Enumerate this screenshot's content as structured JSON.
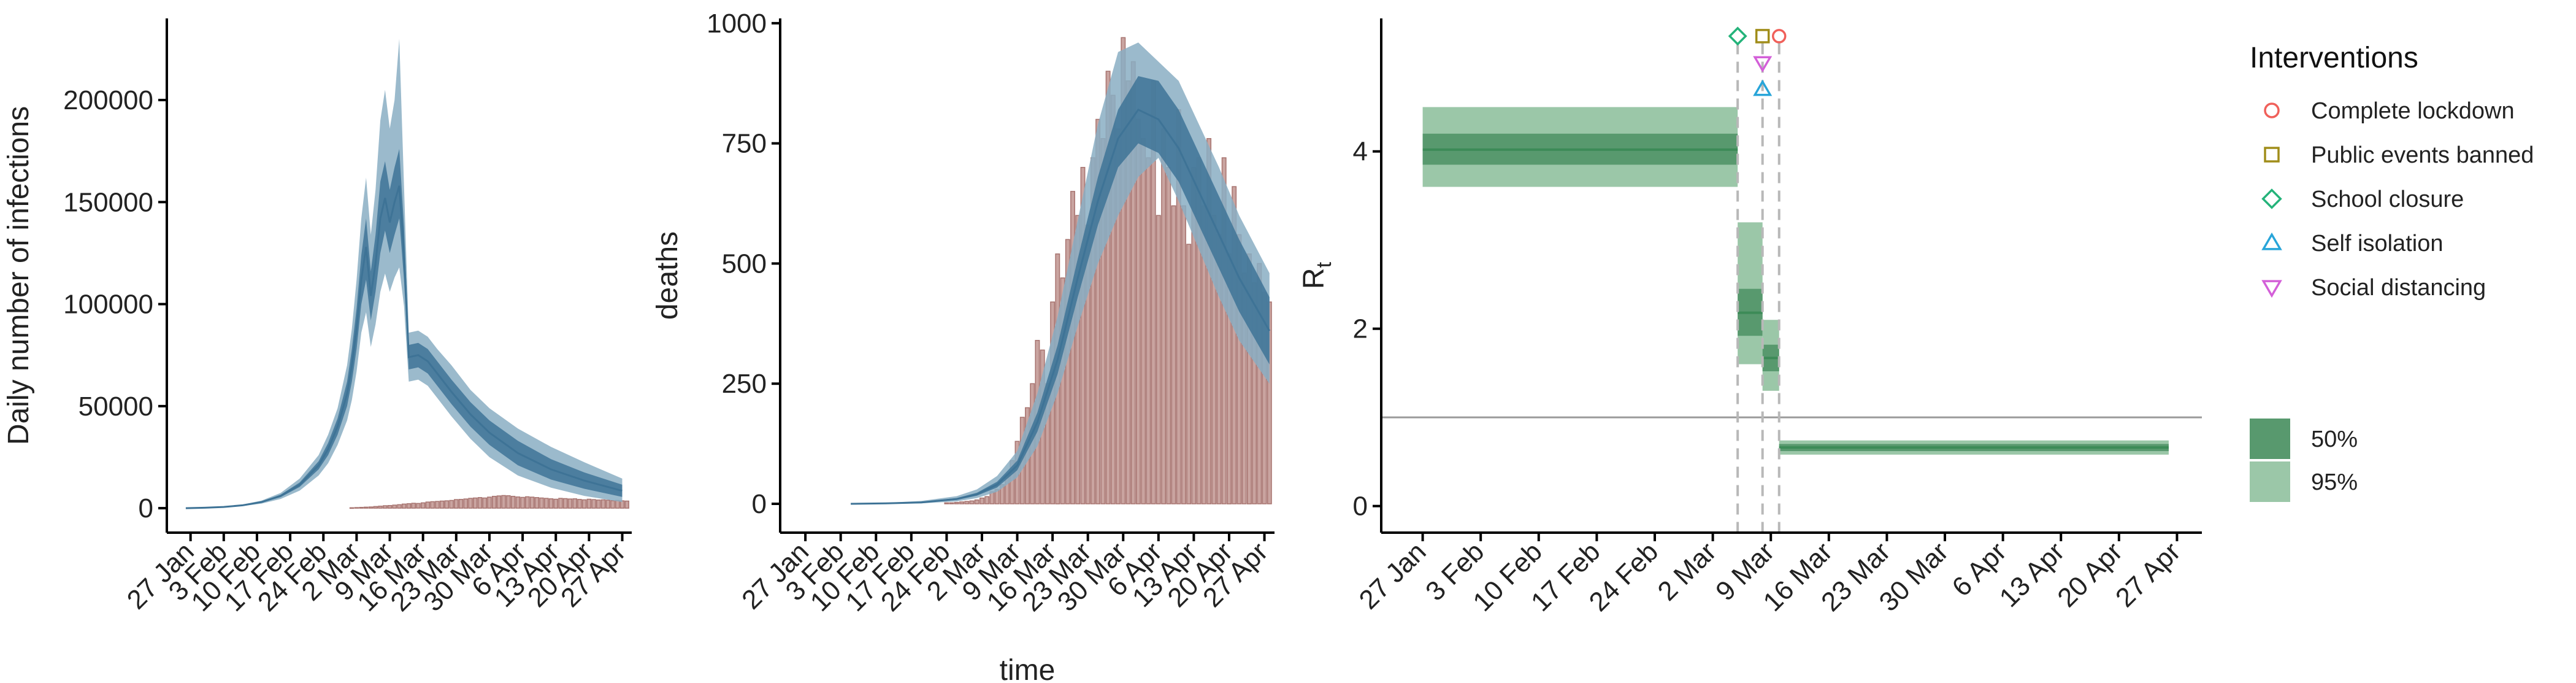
{
  "chart_data": [
    {
      "type": "area",
      "id": "infections",
      "xlabel": "",
      "ylabel": "Daily number of infections",
      "ylim": [
        -12000,
        240000
      ],
      "yticks": [
        "0",
        "50000",
        "100000",
        "150000",
        "200000"
      ],
      "ytick_values": [
        0,
        50000,
        100000,
        150000,
        200000
      ],
      "x_start": "2020-01-22",
      "x_end": "2020-04-29",
      "xticks": [
        "27 Jan",
        "3 Feb",
        "10 Feb",
        "17 Feb",
        "24 Feb",
        "2 Mar",
        "9 Mar",
        "16 Mar",
        "23 Mar",
        "30 Mar",
        "6 Apr",
        "13 Apr",
        "20 Apr",
        "27 Apr"
      ],
      "xtick_dates": [
        "2020-01-27",
        "2020-02-03",
        "2020-02-10",
        "2020-02-17",
        "2020-02-24",
        "2020-03-02",
        "2020-03-09",
        "2020-03-16",
        "2020-03-23",
        "2020-03-30",
        "2020-04-06",
        "2020-04-13",
        "2020-04-20",
        "2020-04-27"
      ],
      "series": [
        {
          "dates": [
            "2020-01-26",
            "2020-01-30",
            "2020-02-03",
            "2020-02-07",
            "2020-02-11",
            "2020-02-15",
            "2020-02-19",
            "2020-02-23",
            "2020-02-25",
            "2020-02-27",
            "2020-02-29",
            "2020-03-01",
            "2020-03-02",
            "2020-03-03",
            "2020-03-04",
            "2020-03-05",
            "2020-03-06",
            "2020-03-07",
            "2020-03-08",
            "2020-03-09",
            "2020-03-10",
            "2020-03-11",
            "2020-03-12",
            "2020-03-13",
            "2020-03-15",
            "2020-03-17",
            "2020-03-19",
            "2020-03-22",
            "2020-03-26",
            "2020-03-30",
            "2020-04-05",
            "2020-04-12",
            "2020-04-19",
            "2020-04-27"
          ],
          "median": [
            0,
            200,
            600,
            1400,
            3000,
            6000,
            11500,
            21000,
            29000,
            40000,
            56000,
            70000,
            88000,
            112000,
            128000,
            104000,
            120000,
            142000,
            152000,
            140000,
            150000,
            158000,
            125000,
            74000,
            75000,
            72000,
            66000,
            57000,
            46000,
            37000,
            27000,
            19000,
            13500,
            8500
          ],
          "p50_low": [
            0,
            180,
            540,
            1260,
            2700,
            5400,
            10400,
            19000,
            26000,
            36000,
            50000,
            62000,
            78000,
            100000,
            112000,
            92000,
            106000,
            125000,
            136000,
            125000,
            134000,
            142000,
            112000,
            68000,
            69000,
            66000,
            60000,
            51000,
            40000,
            31000,
            21000,
            14000,
            9500,
            5500
          ],
          "p50_high": [
            0,
            220,
            660,
            1540,
            3300,
            6600,
            12600,
            23000,
            32000,
            44000,
            62000,
            78000,
            98000,
            124000,
            142000,
            116000,
            134000,
            160000,
            170000,
            156000,
            167000,
            176000,
            138000,
            80000,
            81000,
            78000,
            72000,
            63000,
            52000,
            43000,
            33000,
            24000,
            17500,
            11500
          ],
          "p95_low": [
            0,
            150,
            450,
            1050,
            2250,
            4500,
            8600,
            16000,
            22000,
            31000,
            43000,
            53000,
            67000,
            86000,
            96000,
            79000,
            90000,
            106000,
            115000,
            106000,
            113000,
            118000,
            99000,
            62000,
            63000,
            60000,
            54000,
            45000,
            34000,
            25000,
            16000,
            10000,
            6000,
            3000
          ],
          "p95_high": [
            0,
            250,
            750,
            1750,
            3750,
            7500,
            14500,
            26000,
            36000,
            49000,
            70000,
            88000,
            112000,
            142000,
            162000,
            134000,
            156000,
            190000,
            205000,
            186000,
            200000,
            230000,
            158000,
            86000,
            87000,
            84000,
            78000,
            70000,
            58000,
            49000,
            39000,
            30000,
            22500,
            14500
          ]
        }
      ],
      "bars": {
        "dates": [
          "2020-03-01",
          "2020-03-02",
          "2020-03-03",
          "2020-03-04",
          "2020-03-05",
          "2020-03-06",
          "2020-03-07",
          "2020-03-08",
          "2020-03-09",
          "2020-03-10",
          "2020-03-11",
          "2020-03-12",
          "2020-03-13",
          "2020-03-14",
          "2020-03-15",
          "2020-03-16",
          "2020-03-17",
          "2020-03-18",
          "2020-03-19",
          "2020-03-20",
          "2020-03-21",
          "2020-03-22",
          "2020-03-23",
          "2020-03-24",
          "2020-03-25",
          "2020-03-26",
          "2020-03-27",
          "2020-03-28",
          "2020-03-29",
          "2020-03-30",
          "2020-03-31",
          "2020-04-01",
          "2020-04-02",
          "2020-04-03",
          "2020-04-04",
          "2020-04-05",
          "2020-04-06",
          "2020-04-07",
          "2020-04-08",
          "2020-04-09",
          "2020-04-10",
          "2020-04-11",
          "2020-04-12",
          "2020-04-13",
          "2020-04-14",
          "2020-04-15",
          "2020-04-16",
          "2020-04-17",
          "2020-04-18",
          "2020-04-19",
          "2020-04-20",
          "2020-04-21",
          "2020-04-22",
          "2020-04-23",
          "2020-04-24",
          "2020-04-25",
          "2020-04-26",
          "2020-04-27",
          "2020-04-28"
        ],
        "values": [
          200,
          300,
          400,
          500,
          600,
          800,
          1000,
          1200,
          1300,
          1500,
          1700,
          2000,
          2200,
          2400,
          2300,
          2600,
          3000,
          3200,
          3300,
          3500,
          3600,
          3800,
          4200,
          4300,
          4500,
          4800,
          5000,
          5200,
          5000,
          5400,
          5800,
          6000,
          6200,
          6100,
          5800,
          5500,
          5300,
          5600,
          5400,
          5200,
          5000,
          4800,
          4600,
          4400,
          4800,
          4700,
          4500,
          4600,
          4300,
          4100,
          4400,
          4200,
          4000,
          4100,
          3900,
          3700,
          3800,
          3600,
          3500
        ]
      }
    },
    {
      "type": "area",
      "id": "deaths",
      "xlabel": "time",
      "ylabel": "deaths",
      "ylim": [
        -60,
        1010
      ],
      "yticks": [
        "0",
        "250",
        "500",
        "750",
        "1000"
      ],
      "ytick_values": [
        0,
        250,
        500,
        750,
        1000
      ],
      "x_start": "2020-01-22",
      "x_end": "2020-04-29",
      "xticks": [
        "27 Jan",
        "3 Feb",
        "10 Feb",
        "17 Feb",
        "24 Feb",
        "2 Mar",
        "9 Mar",
        "16 Mar",
        "23 Mar",
        "30 Mar",
        "6 Apr",
        "13 Apr",
        "20 Apr",
        "27 Apr"
      ],
      "xtick_dates": [
        "2020-01-27",
        "2020-02-03",
        "2020-02-10",
        "2020-02-17",
        "2020-02-24",
        "2020-03-02",
        "2020-03-09",
        "2020-03-16",
        "2020-03-23",
        "2020-03-30",
        "2020-04-06",
        "2020-04-13",
        "2020-04-20",
        "2020-04-27"
      ],
      "series": [
        {
          "dates": [
            "2020-02-05",
            "2020-02-12",
            "2020-02-19",
            "2020-02-26",
            "2020-03-01",
            "2020-03-05",
            "2020-03-09",
            "2020-03-13",
            "2020-03-17",
            "2020-03-21",
            "2020-03-25",
            "2020-03-29",
            "2020-04-02",
            "2020-04-06",
            "2020-04-10",
            "2020-04-14",
            "2020-04-18",
            "2020-04-22",
            "2020-04-28"
          ],
          "median": [
            0,
            1,
            3,
            10,
            20,
            40,
            80,
            170,
            300,
            470,
            630,
            760,
            820,
            800,
            740,
            650,
            560,
            470,
            360
          ],
          "p50_low": [
            0,
            1,
            2,
            8,
            17,
            34,
            70,
            150,
            270,
            430,
            580,
            700,
            750,
            730,
            670,
            580,
            490,
            400,
            290
          ],
          "p50_high": [
            0,
            1,
            4,
            12,
            23,
            46,
            90,
            190,
            330,
            510,
            680,
            820,
            890,
            880,
            820,
            730,
            640,
            550,
            430
          ],
          "p95_low": [
            0,
            0,
            1,
            5,
            12,
            25,
            55,
            120,
            230,
            370,
            500,
            600,
            680,
            720,
            630,
            530,
            430,
            340,
            250
          ],
          "p95_high": [
            0,
            2,
            6,
            16,
            30,
            58,
            110,
            230,
            390,
            590,
            790,
            940,
            960,
            920,
            880,
            790,
            700,
            600,
            480
          ]
        }
      ],
      "bars": {
        "dates": [
          "2020-02-24",
          "2020-02-25",
          "2020-02-26",
          "2020-02-27",
          "2020-02-28",
          "2020-02-29",
          "2020-03-01",
          "2020-03-02",
          "2020-03-03",
          "2020-03-04",
          "2020-03-05",
          "2020-03-06",
          "2020-03-07",
          "2020-03-08",
          "2020-03-09",
          "2020-03-10",
          "2020-03-11",
          "2020-03-12",
          "2020-03-13",
          "2020-03-14",
          "2020-03-15",
          "2020-03-16",
          "2020-03-17",
          "2020-03-18",
          "2020-03-19",
          "2020-03-20",
          "2020-03-21",
          "2020-03-22",
          "2020-03-23",
          "2020-03-24",
          "2020-03-25",
          "2020-03-26",
          "2020-03-27",
          "2020-03-28",
          "2020-03-29",
          "2020-03-30",
          "2020-03-31",
          "2020-04-01",
          "2020-04-02",
          "2020-04-03",
          "2020-04-04",
          "2020-04-05",
          "2020-04-06",
          "2020-04-07",
          "2020-04-08",
          "2020-04-09",
          "2020-04-10",
          "2020-04-11",
          "2020-04-12",
          "2020-04-13",
          "2020-04-14",
          "2020-04-15",
          "2020-04-16",
          "2020-04-17",
          "2020-04-18",
          "2020-04-19",
          "2020-04-20",
          "2020-04-21",
          "2020-04-22",
          "2020-04-23",
          "2020-04-24",
          "2020-04-25",
          "2020-04-26",
          "2020-04-27",
          "2020-04-28"
        ],
        "values": [
          2,
          2,
          3,
          4,
          5,
          6,
          8,
          12,
          15,
          25,
          30,
          40,
          60,
          90,
          130,
          180,
          200,
          250,
          340,
          320,
          250,
          420,
          520,
          470,
          550,
          650,
          600,
          700,
          580,
          720,
          800,
          760,
          900,
          850,
          780,
          970,
          880,
          920,
          800,
          760,
          720,
          880,
          600,
          780,
          700,
          620,
          820,
          620,
          540,
          700,
          720,
          620,
          760,
          600,
          560,
          720,
          520,
          660,
          560,
          480,
          520,
          460,
          500,
          440,
          420
        ]
      }
    },
    {
      "type": "interval",
      "id": "rt",
      "xlabel": "",
      "ylabel": "R",
      "ylabel_subscript": "t",
      "ylim": [
        -0.3,
        5.5
      ],
      "yticks": [
        "0",
        "2",
        "4"
      ],
      "ytick_values": [
        0,
        2,
        4
      ],
      "reference_line": 1,
      "x_start": "2020-01-22",
      "x_end": "2020-04-30",
      "xticks": [
        "27 Jan",
        "3 Feb",
        "10 Feb",
        "17 Feb",
        "24 Feb",
        "2 Mar",
        "9 Mar",
        "16 Mar",
        "23 Mar",
        "30 Mar",
        "6 Apr",
        "13 Apr",
        "20 Apr",
        "27 Apr"
      ],
      "xtick_dates": [
        "2020-01-27",
        "2020-02-03",
        "2020-02-10",
        "2020-02-17",
        "2020-02-24",
        "2020-03-02",
        "2020-03-09",
        "2020-03-16",
        "2020-03-23",
        "2020-03-30",
        "2020-04-06",
        "2020-04-13",
        "2020-04-20",
        "2020-04-27"
      ],
      "segments": [
        {
          "start": "2020-01-27",
          "end": "2020-03-05",
          "p95": [
            3.6,
            4.5
          ],
          "p50": [
            3.85,
            4.2
          ],
          "median": 4.02
        },
        {
          "start": "2020-03-05",
          "end": "2020-03-08",
          "p95": [
            1.6,
            3.2
          ],
          "p50": [
            1.92,
            2.45
          ],
          "median": 2.18
        },
        {
          "start": "2020-03-08",
          "end": "2020-03-10",
          "p95": [
            1.3,
            2.1
          ],
          "p50": [
            1.52,
            1.82
          ],
          "median": 1.67
        },
        {
          "start": "2020-03-10",
          "end": "2020-04-26",
          "p95": [
            0.58,
            0.74
          ],
          "p50": [
            0.62,
            0.7
          ],
          "median": 0.66
        }
      ],
      "interventions": [
        {
          "name": "Complete lockdown",
          "date": "2020-03-10",
          "y": 5.3,
          "shape": "circle",
          "color": "#F0605A"
        },
        {
          "name": "Public events banned",
          "date": "2020-03-08",
          "y": 5.3,
          "shape": "square",
          "color": "#A08D1A"
        },
        {
          "name": "School closure",
          "date": "2020-03-05",
          "y": 5.3,
          "shape": "diamond",
          "color": "#24B37A"
        },
        {
          "name": "Self isolation",
          "date": "2020-03-08",
          "y": 4.7,
          "shape": "triangle-up",
          "color": "#28A5D9"
        },
        {
          "name": "Social distancing",
          "date": "2020-03-08",
          "y": 5.0,
          "shape": "triangle-down",
          "color": "#D35FD8"
        }
      ],
      "legend": {
        "title": "Interventions",
        "placement": "right",
        "credible_intervals": [
          "50%",
          "95%"
        ]
      }
    }
  ],
  "colors": {
    "band_95_blue": "#8AAEC3",
    "band_50_blue": "#3E7396",
    "bar_fill": "#C9A4A0",
    "bar_stroke": "#A7736F",
    "rt_50": "#58996E",
    "rt_95": "#9BC7A8",
    "rt_median": "#3C8B57",
    "intervention_line": "#B8B8B8",
    "reference_line": "#9A9A9A"
  }
}
